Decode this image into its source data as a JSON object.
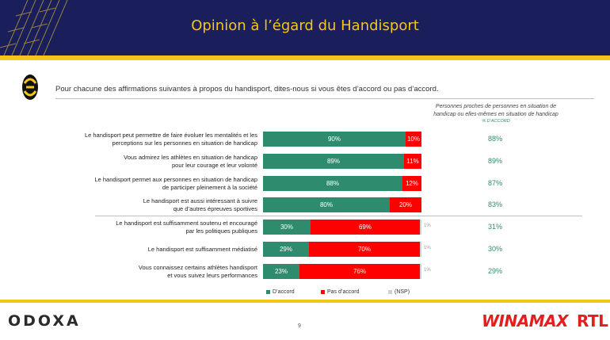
{
  "header": {
    "title": "Opinion à l’égard du Handisport"
  },
  "question": "Pour chacune des affirmations suivantes à propos du handisport, dites-nous si vous êtes d’accord ou pas d’accord.",
  "column_header": {
    "line1": "Personnes proches de personnes en situation de",
    "line2": "handicap ou elles-mêmes en situation de handicap",
    "sub": "% D’ACCORD"
  },
  "colors": {
    "accord": "#2e8b6e",
    "pas_accord": "#ff0000",
    "nsp": "#d0d0d0",
    "brand_yellow": "#f5c518",
    "brand_navy": "#1a1f5c"
  },
  "chart_data": {
    "type": "bar",
    "orientation": "horizontal-stacked-100",
    "categories": [
      [
        "Le handisport peut permettre de faire évoluer les mentalités et les",
        "perceptions sur les personnes en situation de handicap"
      ],
      [
        "Vous admirez les athlètes en situation de handicap",
        "pour leur courage et leur volonté"
      ],
      [
        "Le handisport permet aux personnes en situation de handicap",
        "de participer pleinement à la société"
      ],
      [
        "Le handisport est aussi intéressant à suivre",
        "que d’autres épreuves sportives"
      ],
      [
        "Le handisport est suffisamment soutenu et encouragé",
        "par les politiques publiques"
      ],
      [
        "Le handisport est suffisamment médiatisé"
      ],
      [
        "Vous connaissez certains athlètes handisport",
        "et vous suivez leurs performances"
      ]
    ],
    "series": [
      {
        "name": "D’accord",
        "values": [
          90,
          89,
          88,
          80,
          30,
          29,
          23
        ]
      },
      {
        "name": "Pas d’accord",
        "values": [
          10,
          11,
          12,
          20,
          69,
          70,
          76
        ]
      },
      {
        "name": "(NSP)",
        "values": [
          0,
          0,
          0,
          0,
          1,
          1,
          1
        ]
      }
    ],
    "nsp_labels": [
      "",
      "",
      "",
      "",
      "1%",
      "1%",
      "1%"
    ],
    "proches_pct": [
      "88%",
      "89%",
      "87%",
      "83%",
      "31%",
      "30%",
      "29%"
    ],
    "legend": [
      "D’accord",
      "Pas d’accord",
      "(NSP)"
    ]
  },
  "footer": {
    "brand_left": "ODOXA",
    "page": "9",
    "brand_right_1": "WINAMAX",
    "brand_right_2": "RTL"
  }
}
